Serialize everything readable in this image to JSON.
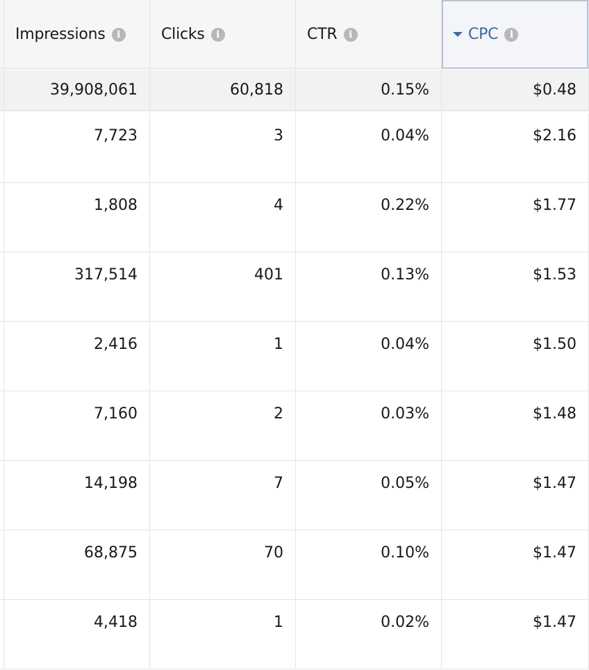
{
  "columns": {
    "impressions": "Impressions",
    "clicks": "Clicks",
    "ctr": "CTR",
    "cpc": "CPC"
  },
  "totals": {
    "impressions": "39,908,061",
    "clicks": "60,818",
    "ctr": "0.15%",
    "cpc": "$0.48"
  },
  "rows": [
    {
      "impressions": "7,723",
      "clicks": "3",
      "ctr": "0.04%",
      "cpc": "$2.16"
    },
    {
      "impressions": "1,808",
      "clicks": "4",
      "ctr": "0.22%",
      "cpc": "$1.77"
    },
    {
      "impressions": "317,514",
      "clicks": "401",
      "ctr": "0.13%",
      "cpc": "$1.53"
    },
    {
      "impressions": "2,416",
      "clicks": "1",
      "ctr": "0.04%",
      "cpc": "$1.50"
    },
    {
      "impressions": "7,160",
      "clicks": "2",
      "ctr": "0.03%",
      "cpc": "$1.48"
    },
    {
      "impressions": "14,198",
      "clicks": "7",
      "ctr": "0.05%",
      "cpc": "$1.47"
    },
    {
      "impressions": "68,875",
      "clicks": "70",
      "ctr": "0.10%",
      "cpc": "$1.47"
    },
    {
      "impressions": "4,418",
      "clicks": "1",
      "ctr": "0.02%",
      "cpc": "$1.47"
    }
  ],
  "sort": {
    "column": "CPC",
    "direction": "descending"
  },
  "icons": {
    "info": "info-icon",
    "sort": "caret-down-icon"
  },
  "colors": {
    "header_bg": "#f6f6f6",
    "totals_bg": "#f2f2f2",
    "sorted_header_text": "#3f6a9e",
    "grid_line": "#e1e4e8",
    "info_icon": "#b8b8b8"
  }
}
